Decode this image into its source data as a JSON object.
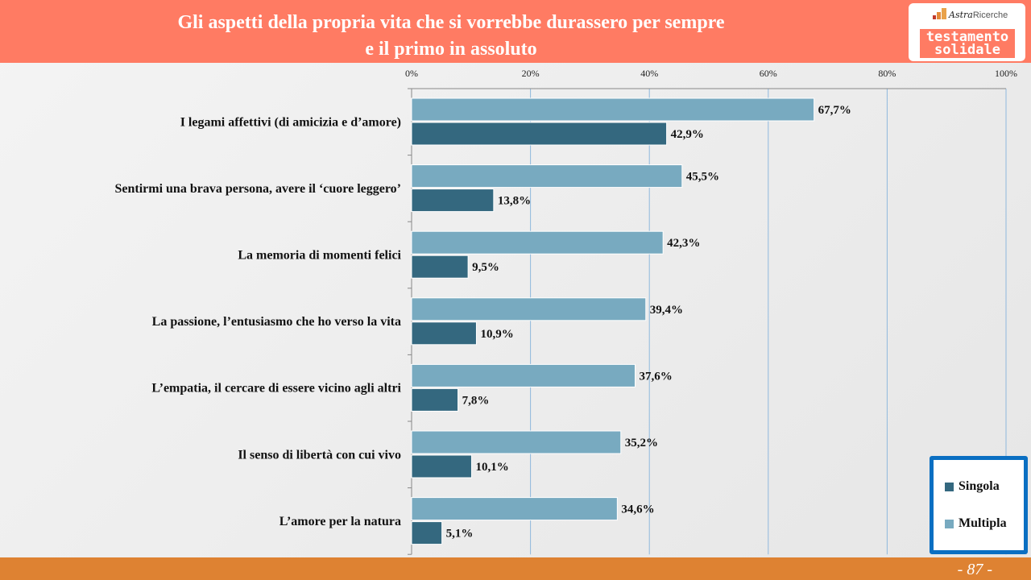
{
  "header": {
    "title_line1": "Gli aspetti della propria vita che si vorrebbe durassero per sempre",
    "title_line2": "e il primo in assoluto"
  },
  "logo": {
    "brand": "Astra",
    "brand2": "Ricerche",
    "line1": "testamento",
    "line2": "solidale"
  },
  "footer": {
    "page": "- 87 -"
  },
  "colors": {
    "singola": "#34687F",
    "multipla": "#78AAC0",
    "header": "#FF7B63",
    "footer": "#DE8232"
  },
  "chart_data": {
    "type": "bar",
    "orientation": "horizontal",
    "title": "Gli aspetti della propria vita che si vorrebbe durassero per sempre e il primo in assoluto",
    "xlim": [
      0,
      100
    ],
    "xticks": [
      "0%",
      "20%",
      "40%",
      "60%",
      "80%",
      "100%"
    ],
    "xtick_values": [
      0,
      20,
      40,
      60,
      80,
      100
    ],
    "grid": true,
    "legend_position": "bottom-right",
    "categories": [
      "I legami affettivi (di amicizia e d’amore)",
      "Sentirmi una brava persona, avere il ‘cuore leggero’",
      "La memoria di momenti felici",
      "La passione, l’entusiasmo che ho verso la vita",
      "L’empatia, il cercare di essere vicino agli altri",
      "Il senso di libertà con cui vivo",
      "L’amore per la natura"
    ],
    "series": [
      {
        "name": "Multipla",
        "values": [
          67.7,
          45.5,
          42.3,
          39.4,
          37.6,
          35.2,
          34.6
        ],
        "labels": [
          "67,7%",
          "45,5%",
          "42,3%",
          "39,4%",
          "37,6%",
          "35,2%",
          "34,6%"
        ]
      },
      {
        "name": "Singola",
        "values": [
          42.9,
          13.8,
          9.5,
          10.9,
          7.8,
          10.1,
          5.1
        ],
        "labels": [
          "42,9%",
          "13,8%",
          "9,5%",
          "10,9%",
          "7,8%",
          "10,1%",
          "5,1%"
        ]
      }
    ]
  }
}
